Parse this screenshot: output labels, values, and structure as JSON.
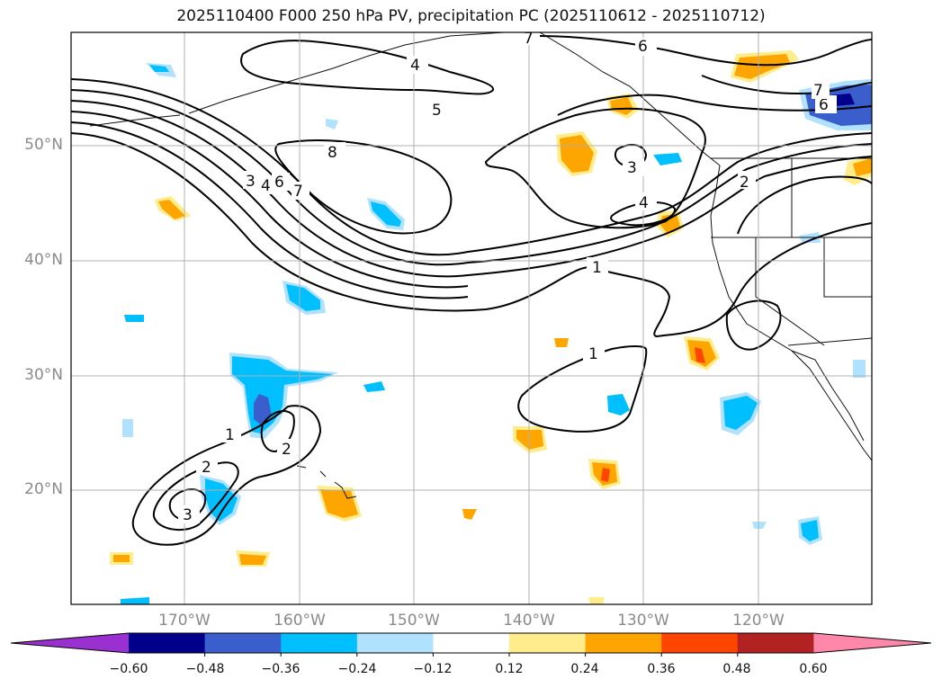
{
  "title": "2025110400 F000 250 hPa PV, precipitation PC (2025110612 - 2025110712)",
  "lat_labels": [
    "50°N",
    "40°N",
    "30°N",
    "20°N"
  ],
  "lon_labels": [
    "170°W",
    "160°W",
    "150°W",
    "140°W",
    "130°W",
    "120°W"
  ],
  "contour_labels": [
    "1",
    "1",
    "1",
    "2",
    "2",
    "2",
    "3",
    "3",
    "3",
    "4",
    "4",
    "4",
    "5",
    "6",
    "6",
    "6",
    "7",
    "7",
    "7",
    "8"
  ],
  "colorbar": {
    "ticks": [
      "−0.60",
      "−0.48",
      "−0.36",
      "−0.24",
      "−0.12",
      "0.12",
      "0.24",
      "0.36",
      "0.48",
      "0.60"
    ],
    "colors": [
      "#9b30d0",
      "#00008b",
      "#3a5fcd",
      "#00bfff",
      "#b0e2ff",
      "#ffffff",
      "#ffec8b",
      "#ffa500",
      "#ff4500",
      "#b22222",
      "#ff88aa"
    ]
  }
}
